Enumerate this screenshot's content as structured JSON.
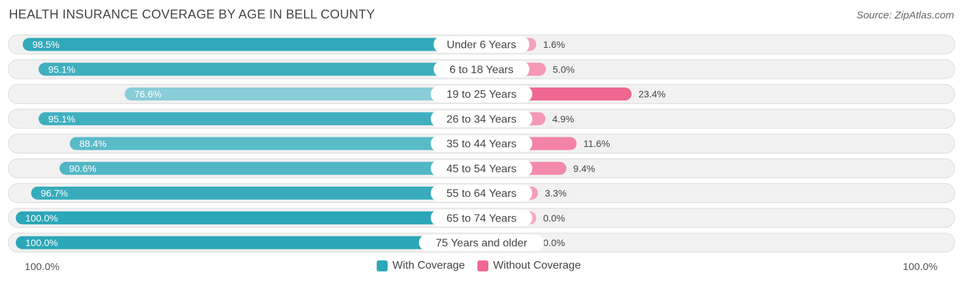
{
  "chart_data": {
    "type": "bar",
    "orientation": "horizontal-diverging",
    "title": "HEALTH INSURANCE COVERAGE BY AGE IN BELL COUNTY",
    "source": "Source: ZipAtlas.com",
    "categories": [
      "Under 6 Years",
      "6 to 18 Years",
      "19 to 25 Years",
      "26 to 34 Years",
      "35 to 44 Years",
      "45 to 54 Years",
      "55 to 64 Years",
      "65 to 74 Years",
      "75 Years and older"
    ],
    "series": [
      {
        "name": "With Coverage",
        "values": [
          98.5,
          95.1,
          76.6,
          95.1,
          88.4,
          90.6,
          96.7,
          100.0,
          100.0
        ],
        "labels": [
          "98.5%",
          "95.1%",
          "76.6%",
          "95.1%",
          "88.4%",
          "90.6%",
          "96.7%",
          "100.0%",
          "100.0%"
        ],
        "color": "#2ba7b8",
        "light_color": "#8fd0da"
      },
      {
        "name": "Without Coverage",
        "values": [
          1.6,
          5.0,
          23.4,
          4.9,
          11.6,
          9.4,
          3.3,
          0.0,
          0.0
        ],
        "labels": [
          "1.6%",
          "5.0%",
          "23.4%",
          "4.9%",
          "11.6%",
          "9.4%",
          "3.3%",
          "0.0%",
          "0.0%"
        ],
        "color": "#f06892",
        "light_color": "#f7a8c1"
      }
    ],
    "axis": {
      "left_label": "100.0%",
      "right_label": "100.0%",
      "max": 100
    },
    "legend": {
      "position": "bottom-center"
    }
  }
}
